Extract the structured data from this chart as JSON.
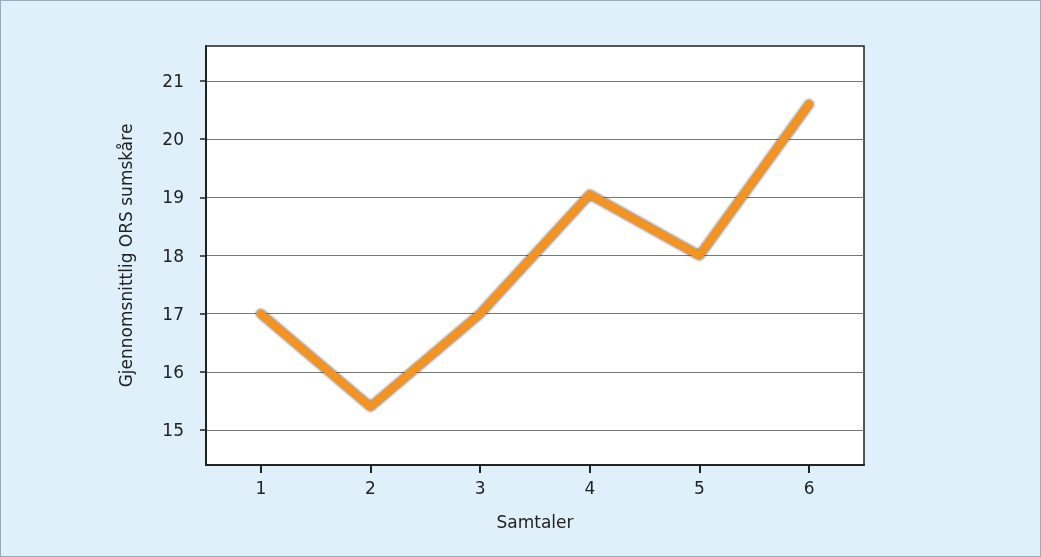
{
  "chart_data": {
    "type": "line",
    "xlabel": "Samtaler",
    "ylabel": "Gjennomsnittlig ORS sumskåre",
    "x": [
      1,
      2,
      3,
      4,
      5,
      6
    ],
    "series": [
      {
        "color": "#f39324",
        "values": [
          17.0,
          15.4,
          17.0,
          19.05,
          18.0,
          20.6
        ]
      }
    ],
    "xlim": [
      0.5,
      6.5
    ],
    "xticks": [
      1,
      2,
      3,
      4,
      5,
      6
    ],
    "ylim": [
      14.4,
      21.6
    ],
    "yticks": [
      15,
      16,
      17,
      18,
      19,
      20,
      21
    ],
    "grid": "y",
    "line_style": "solid"
  }
}
